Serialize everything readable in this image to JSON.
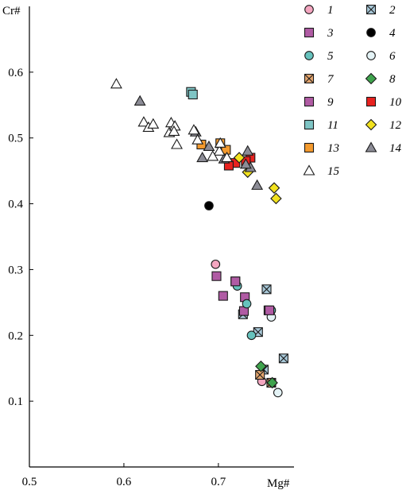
{
  "chart_data": {
    "type": "scatter",
    "xlabel": "Mg#",
    "ylabel": "Cr#",
    "xlim": [
      0.5,
      0.78
    ],
    "ylim": [
      0.0,
      0.7
    ],
    "x_ticks": [
      "0.5",
      "0.6",
      "0.7"
    ],
    "x_tick_values": [
      0.5,
      0.6,
      0.7
    ],
    "y_ticks": [
      "0.1",
      "0.2",
      "0.3",
      "0.4",
      "0.5",
      "0.6"
    ],
    "y_tick_values": [
      0.1,
      0.2,
      0.3,
      0.4,
      0.5,
      0.6
    ],
    "legend_position": "right",
    "series": [
      {
        "name": "1",
        "marker": "circle",
        "color": "#f4a6c0",
        "points": [
          [
            0.697,
            0.308
          ],
          [
            0.746,
            0.13
          ]
        ]
      },
      {
        "name": "2",
        "marker": "xsquare",
        "color": "#a8c8d8",
        "points": [
          [
            0.751,
            0.27
          ],
          [
            0.742,
            0.205
          ],
          [
            0.769,
            0.165
          ],
          [
            0.726,
            0.232
          ],
          [
            0.748,
            0.148
          ]
        ]
      },
      {
        "name": "3",
        "marker": "square",
        "color": "#b05ba4",
        "points": [
          [
            0.698,
            0.29
          ],
          [
            0.718,
            0.282
          ],
          [
            0.728,
            0.258
          ],
          [
            0.705,
            0.26
          ],
          [
            0.727,
            0.237
          ],
          [
            0.753,
            0.238
          ]
        ]
      },
      {
        "name": "4",
        "marker": "circle",
        "color": "#000000",
        "points": [
          [
            0.69,
            0.397
          ]
        ]
      },
      {
        "name": "5",
        "marker": "circle",
        "color": "#66c2bd",
        "points": [
          [
            0.73,
            0.248
          ],
          [
            0.756,
            0.238
          ],
          [
            0.735,
            0.2
          ],
          [
            0.72,
            0.275
          ]
        ]
      },
      {
        "name": "6",
        "marker": "circle",
        "color": "#e4f3f6",
        "points": [
          [
            0.763,
            0.113
          ],
          [
            0.756,
            0.228
          ]
        ]
      },
      {
        "name": "7",
        "marker": "xsquare",
        "color": "#e5a66e",
        "points": [
          [
            0.744,
            0.14
          ],
          [
            0.756,
            0.128
          ]
        ]
      },
      {
        "name": "8",
        "marker": "diamond",
        "color": "#3fa34d",
        "points": [
          [
            0.745,
            0.153
          ],
          [
            0.757,
            0.128
          ]
        ]
      },
      {
        "name": "9",
        "marker": "square",
        "color": "#b05ba4",
        "points": [
          [
            0.718,
            0.282
          ],
          [
            0.754,
            0.238
          ]
        ]
      },
      {
        "name": "10",
        "marker": "square",
        "color": "#e8221f",
        "points": [
          [
            0.718,
            0.462
          ],
          [
            0.711,
            0.458
          ],
          [
            0.734,
            0.47
          ],
          [
            0.729,
            0.465
          ]
        ]
      },
      {
        "name": "11",
        "marker": "square",
        "color": "#7fc5c5",
        "points": [
          [
            0.671,
            0.57
          ],
          [
            0.673,
            0.566
          ]
        ]
      },
      {
        "name": "12",
        "marker": "diamond",
        "color": "#f2e21e",
        "points": [
          [
            0.759,
            0.424
          ],
          [
            0.761,
            0.408
          ],
          [
            0.731,
            0.448
          ],
          [
            0.722,
            0.47
          ]
        ]
      },
      {
        "name": "13",
        "marker": "square",
        "color": "#f39a2e",
        "points": [
          [
            0.702,
            0.492
          ],
          [
            0.708,
            0.482
          ],
          [
            0.682,
            0.49
          ]
        ]
      },
      {
        "name": "14",
        "marker": "triangle",
        "color": "#8c8c96",
        "points": [
          [
            0.617,
            0.556
          ],
          [
            0.676,
            0.509
          ],
          [
            0.69,
            0.487
          ],
          [
            0.683,
            0.47
          ],
          [
            0.731,
            0.48
          ],
          [
            0.734,
            0.455
          ],
          [
            0.741,
            0.428
          ],
          [
            0.706,
            0.468
          ],
          [
            0.729,
            0.46
          ]
        ]
      },
      {
        "name": "15",
        "marker": "triangle",
        "color": "#ffffff",
        "points": [
          [
            0.592,
            0.582
          ],
          [
            0.621,
            0.524
          ],
          [
            0.626,
            0.516
          ],
          [
            0.631,
            0.521
          ],
          [
            0.65,
            0.523
          ],
          [
            0.648,
            0.508
          ],
          [
            0.654,
            0.518
          ],
          [
            0.653,
            0.51
          ],
          [
            0.656,
            0.49
          ],
          [
            0.674,
            0.512
          ],
          [
            0.678,
            0.497
          ],
          [
            0.701,
            0.48
          ],
          [
            0.702,
            0.492
          ],
          [
            0.709,
            0.47
          ],
          [
            0.694,
            0.472
          ]
        ]
      }
    ]
  }
}
